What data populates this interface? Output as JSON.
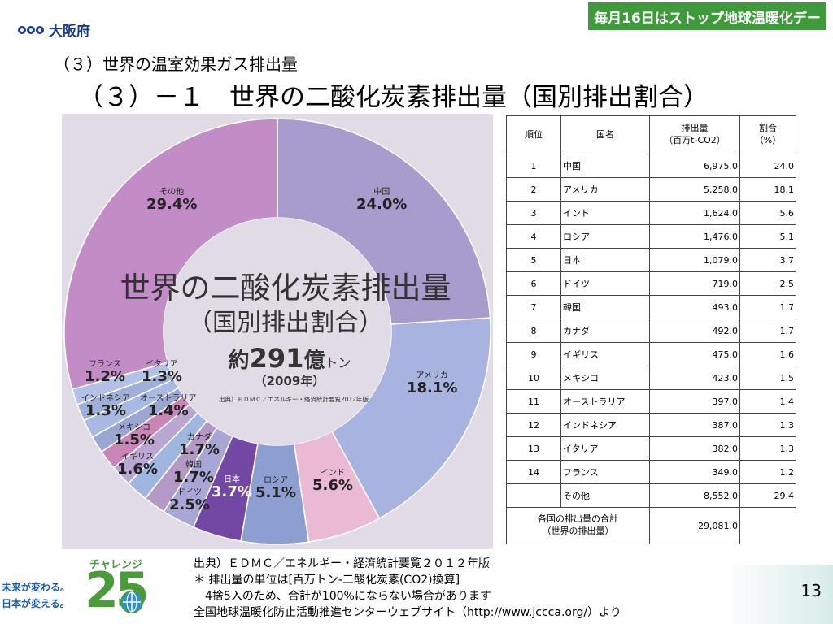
{
  "header": {
    "logo_text": "大阪府",
    "campaign_banner": "毎月16日はストップ地球温暖化デー",
    "subtitle": "（３）世界の温室効果ガス排出量",
    "title": "（３）－１　世界の二酸化炭素排出量（国別排出割合）"
  },
  "chart_overlay": {
    "main_title": "世界の二酸化炭素排出量",
    "main_sub": "（国別排出割合）",
    "total_prefix": "約",
    "total_value": "291",
    "total_unit_big": "億",
    "total_unit_small": "トン",
    "year": "（2009年）",
    "source": "出典）ＥＤＭＣ／エネルギー・経済統計要覧2012年版"
  },
  "chart_data": {
    "type": "pie",
    "donut": true,
    "unit": "%",
    "categories": [
      "中国",
      "アメリカ",
      "インド",
      "ロシア",
      "日本",
      "ドイツ",
      "韓国",
      "カナダ",
      "イギリス",
      "メキシコ",
      "インドネシア",
      "オーストラリア",
      "イタリア",
      "フランス",
      "その他"
    ],
    "values": [
      24.0,
      18.1,
      5.6,
      5.1,
      3.7,
      2.5,
      1.7,
      1.7,
      1.6,
      1.5,
      1.3,
      1.4,
      1.3,
      1.2,
      29.4
    ],
    "labels": [
      "24.0%",
      "18.1%",
      "5.6%",
      "5.1%",
      "3.7%",
      "2.5%",
      "1.7%",
      "1.7%",
      "1.6%",
      "1.5%",
      "1.3%",
      "1.4%",
      "1.3%",
      "1.2%",
      "29.4%"
    ],
    "colors": [
      "#a89ccc",
      "#a9b3df",
      "#eab9d3",
      "#8d9fd0",
      "#7348a5",
      "#a9a6d6",
      "#b498c6",
      "#9fb6de",
      "#b9a7d2",
      "#c985b8",
      "#9ca7d1",
      "#a8bae3",
      "#9fb0d8",
      "#b3c1e6",
      "#c28cc6"
    ]
  },
  "table": {
    "headers": {
      "rank": "順位",
      "country": "国名",
      "emissions_line1": "排出量",
      "emissions_line2": "（百万t-CO2）",
      "share_line1": "割合",
      "share_line2": "（%）"
    },
    "rows": [
      {
        "rank": "1",
        "country": "中国",
        "amount": "6,975.0",
        "share": "24.0"
      },
      {
        "rank": "2",
        "country": "アメリカ",
        "amount": "5,258.0",
        "share": "18.1"
      },
      {
        "rank": "3",
        "country": "インド",
        "amount": "1,624.0",
        "share": "5.6"
      },
      {
        "rank": "4",
        "country": "ロシア",
        "amount": "1,476.0",
        "share": "5.1"
      },
      {
        "rank": "5",
        "country": "日本",
        "amount": "1,079.0",
        "share": "3.7"
      },
      {
        "rank": "6",
        "country": "ドイツ",
        "amount": "719.0",
        "share": "2.5"
      },
      {
        "rank": "7",
        "country": "韓国",
        "amount": "493.0",
        "share": "1.7"
      },
      {
        "rank": "8",
        "country": "カナダ",
        "amount": "492.0",
        "share": "1.7"
      },
      {
        "rank": "9",
        "country": "イギリス",
        "amount": "475.0",
        "share": "1.6"
      },
      {
        "rank": "10",
        "country": "メキシコ",
        "amount": "423.0",
        "share": "1.5"
      },
      {
        "rank": "11",
        "country": "オーストラリア",
        "amount": "397.0",
        "share": "1.4"
      },
      {
        "rank": "12",
        "country": "インドネシア",
        "amount": "387.0",
        "share": "1.3"
      },
      {
        "rank": "13",
        "country": "イタリア",
        "amount": "382.0",
        "share": "1.3"
      },
      {
        "rank": "14",
        "country": "フランス",
        "amount": "349.0",
        "share": "1.2"
      },
      {
        "rank": "",
        "country": "その他",
        "amount": "8,552.0",
        "share": "29.4"
      }
    ],
    "total_label_line1": "各国の排出量の合計",
    "total_label_line2": "（世界の排出量）",
    "total_amount": "29,081.0"
  },
  "notes": {
    "line1": "出典）ＥＤＭＣ／エネルギー・経済統計要覧２０１２年版",
    "line2": "＊ 排出量の単位は[百万トン-二酸化炭素(CO2)換算]",
    "line3": "　4捨5入のため、合計が100%にならない場合があります",
    "line4": "全国地球温暖化防止活動推進センターウェブサイト（http://www.jccca.org/）より"
  },
  "footer": {
    "challenge_label": "チャレンジ",
    "challenge_number": "25",
    "slogan_line1": "未来が変わる。",
    "slogan_line2": "日本が変える。",
    "page_number": "13"
  }
}
